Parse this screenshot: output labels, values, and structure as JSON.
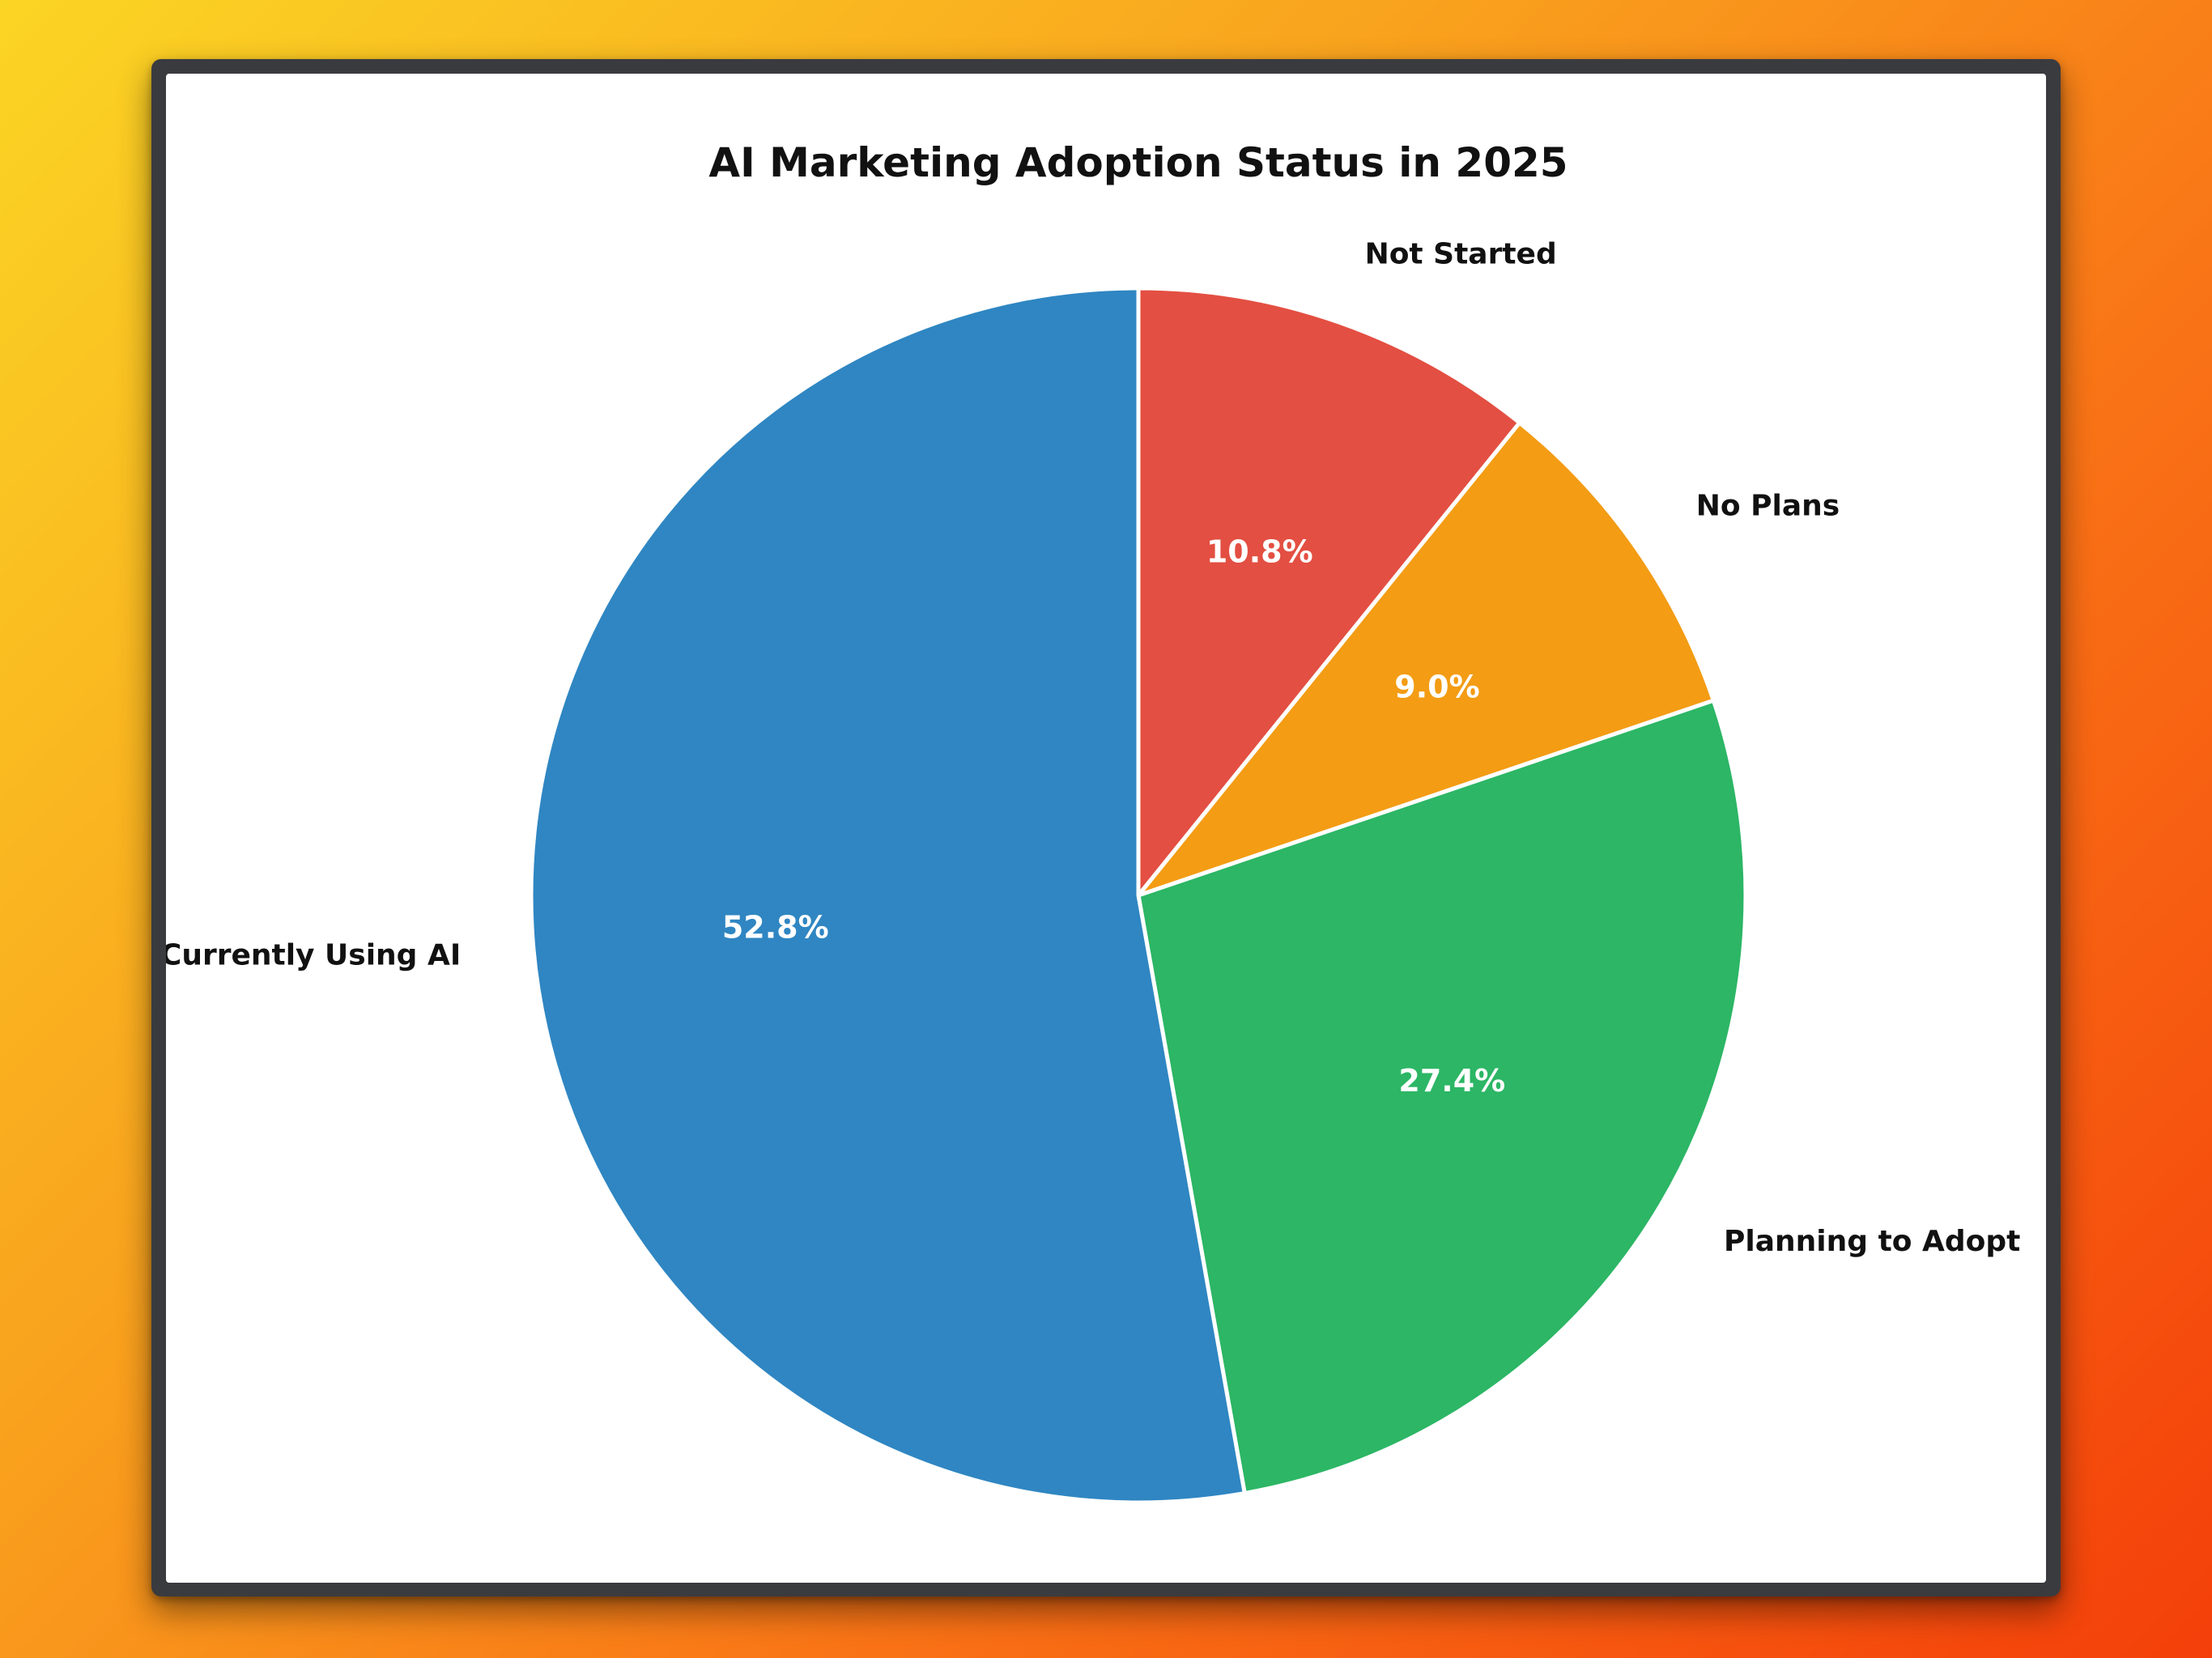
{
  "chart_data": {
    "type": "pie",
    "title": "AI Marketing Adoption Status in 2025",
    "start_angle_deg": 90,
    "direction": "clockwise",
    "slices": [
      {
        "label": "Not Started",
        "value": 10.8,
        "pct_label": "10.8%",
        "color": "#e34f42"
      },
      {
        "label": "No Plans",
        "value": 9.0,
        "pct_label": "9.0%",
        "color": "#f39c14"
      },
      {
        "label": "Planning to Adopt",
        "value": 27.4,
        "pct_label": "27.4%",
        "color": "#2cb665"
      },
      {
        "label": "Currently Using AI",
        "value": 52.8,
        "pct_label": "52.8%",
        "color": "#2f86c2"
      }
    ],
    "slice_edge_color": "#ffffff"
  }
}
